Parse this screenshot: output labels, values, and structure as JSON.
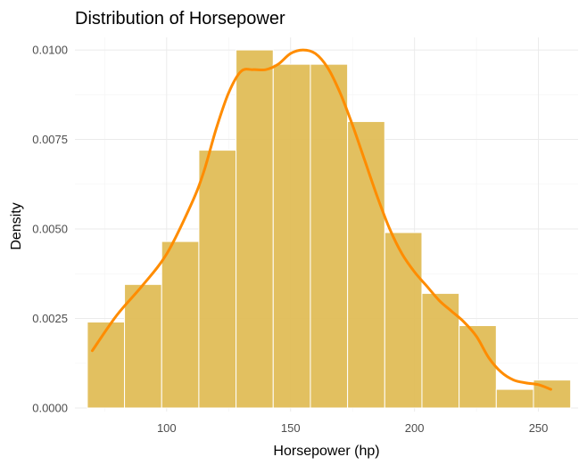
{
  "chart_data": {
    "type": "histogram",
    "title": "Distribution of Horsepower",
    "xlabel": "Horsepower (hp)",
    "ylabel": "Density",
    "xlim": [
      63,
      266
    ],
    "ylim": [
      -0.0001,
      0.01035
    ],
    "xticks": [
      100,
      150,
      200,
      250
    ],
    "yticks": [
      0.0,
      0.0025,
      0.005,
      0.0075,
      0.01
    ],
    "ytick_labels": [
      "0.0000",
      "0.0025",
      "0.0050",
      "0.0075",
      "0.0100"
    ],
    "grid": true,
    "bins": [
      {
        "x0": 68,
        "x1": 83,
        "density": 0.0024
      },
      {
        "x0": 83,
        "x1": 98,
        "density": 0.00345
      },
      {
        "x0": 98,
        "x1": 113,
        "density": 0.00465
      },
      {
        "x0": 113,
        "x1": 128,
        "density": 0.0072
      },
      {
        "x0": 128,
        "x1": 143,
        "density": 0.01
      },
      {
        "x0": 143,
        "x1": 158,
        "density": 0.0096
      },
      {
        "x0": 158,
        "x1": 173,
        "density": 0.0096
      },
      {
        "x0": 173,
        "x1": 188,
        "density": 0.008
      },
      {
        "x0": 188,
        "x1": 203,
        "density": 0.0049
      },
      {
        "x0": 203,
        "x1": 218,
        "density": 0.0032
      },
      {
        "x0": 218,
        "x1": 233,
        "density": 0.0023
      },
      {
        "x0": 233,
        "x1": 248,
        "density": 0.00052
      },
      {
        "x0": 248,
        "x1": 263,
        "density": 0.00078
      }
    ],
    "density_curve": {
      "x": [
        70,
        80,
        90,
        100,
        110,
        115,
        120,
        125,
        130,
        135,
        140,
        145,
        150,
        155,
        160,
        165,
        170,
        175,
        180,
        185,
        190,
        195,
        200,
        205,
        210,
        215,
        220,
        225,
        230,
        235,
        240,
        245,
        250,
        255
      ],
      "y": [
        0.0016,
        0.0026,
        0.0034,
        0.0043,
        0.0057,
        0.0066,
        0.0078,
        0.0088,
        0.0094,
        0.00945,
        0.00945,
        0.0096,
        0.0099,
        0.01,
        0.0099,
        0.0095,
        0.0088,
        0.0079,
        0.0069,
        0.0059,
        0.005,
        0.0043,
        0.0038,
        0.0034,
        0.003,
        0.0027,
        0.0024,
        0.002,
        0.0014,
        0.001,
        0.00078,
        0.0007,
        0.00065,
        0.00052
      ]
    },
    "colors": {
      "bar_fill": "#e0bb52",
      "curve": "#ff8c00",
      "grid": "#ebebeb"
    }
  }
}
